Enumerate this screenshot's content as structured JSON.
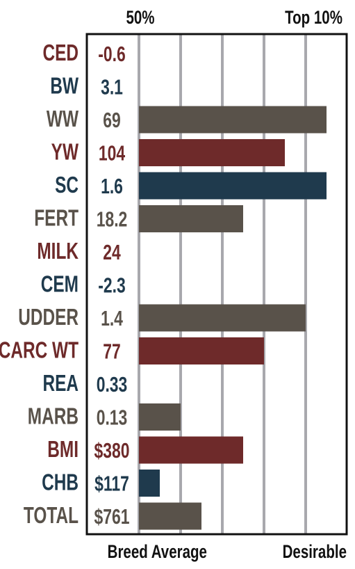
{
  "header": {
    "left_label": "50%",
    "right_label": "Top 10%"
  },
  "footer": {
    "left_label": "Breed Average",
    "right_label": "Desirable"
  },
  "colors": {
    "red": "#6e2a2a",
    "blue": "#1f3a4d",
    "gray": "#59524a",
    "grid": "#a8a8ad",
    "frame": "#111111"
  },
  "chart_data": {
    "type": "bar",
    "orientation": "horizontal",
    "scale_range": [
      0,
      10
    ],
    "grid": true,
    "rows": [
      {
        "label": "CED",
        "value_text": "-0.6",
        "bar": 0,
        "color": "red"
      },
      {
        "label": "BW",
        "value_text": "3.1",
        "bar": 0,
        "color": "blue"
      },
      {
        "label": "WW",
        "value_text": "69",
        "bar": 9,
        "color": "gray"
      },
      {
        "label": "YW",
        "value_text": "104",
        "bar": 7,
        "color": "red"
      },
      {
        "label": "SC",
        "value_text": "1.6",
        "bar": 9,
        "color": "blue"
      },
      {
        "label": "FERT",
        "value_text": "18.2",
        "bar": 5,
        "color": "gray"
      },
      {
        "label": "MILK",
        "value_text": "24",
        "bar": 0,
        "color": "red"
      },
      {
        "label": "CEM",
        "value_text": "-2.3",
        "bar": 0,
        "color": "blue"
      },
      {
        "label": "UDDER",
        "value_text": "1.4",
        "bar": 8,
        "color": "gray"
      },
      {
        "label": "CARC WT",
        "value_text": "77",
        "bar": 6,
        "color": "red"
      },
      {
        "label": "REA",
        "value_text": "0.33",
        "bar": 0,
        "color": "blue"
      },
      {
        "label": "MARB",
        "value_text": "0.13",
        "bar": 2,
        "color": "gray"
      },
      {
        "label": "BMI",
        "value_text": "$380",
        "bar": 5,
        "color": "red"
      },
      {
        "label": "CHB",
        "value_text": "$117",
        "bar": 1,
        "color": "blue"
      },
      {
        "label": "TOTAL",
        "value_text": "$761",
        "bar": 3,
        "color": "gray"
      }
    ]
  }
}
